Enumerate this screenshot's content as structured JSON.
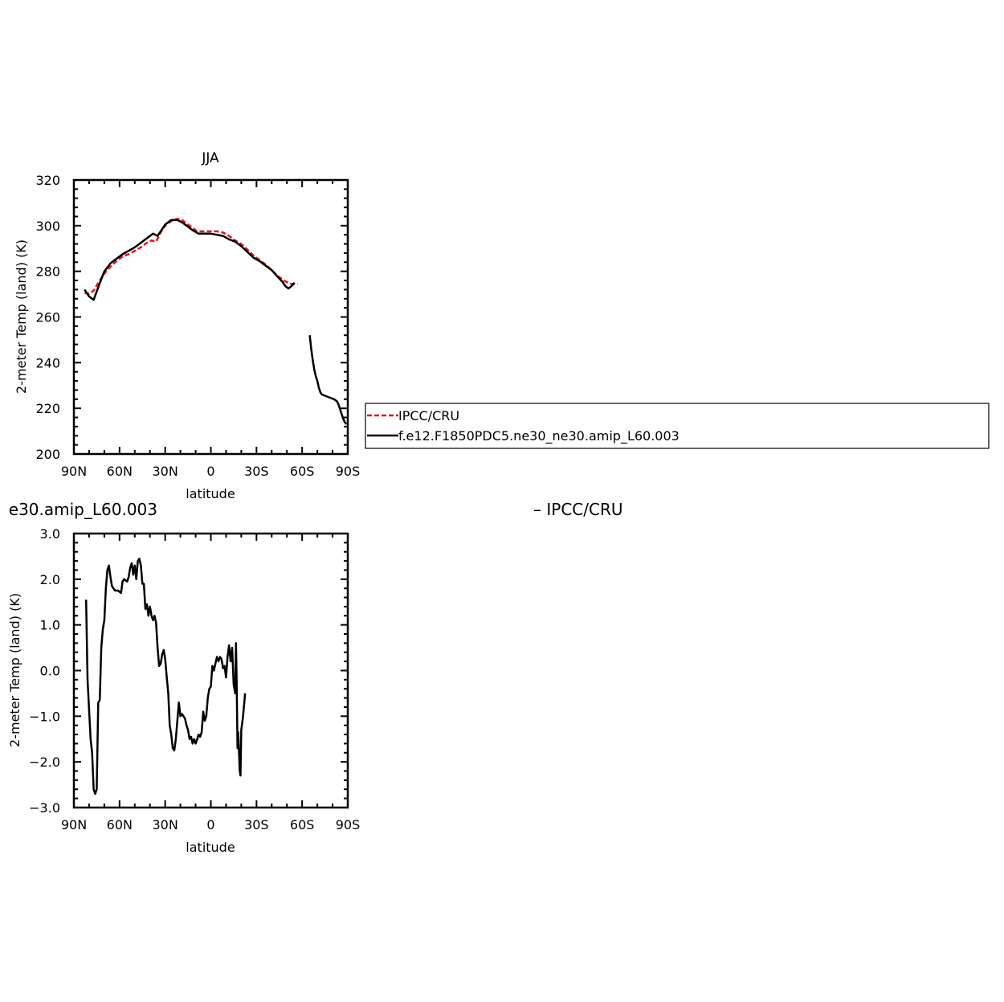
{
  "chart_data": [
    {
      "type": "line",
      "title": "JJA",
      "xlabel": "latitude",
      "ylabel": "2-meter Temp (land) (K)",
      "xlim": [
        90,
        -90
      ],
      "ylim": [
        200,
        320
      ],
      "x_ticks": [
        {
          "value": 90,
          "label": "90N"
        },
        {
          "value": 60,
          "label": "60N"
        },
        {
          "value": 30,
          "label": "30N"
        },
        {
          "value": 0,
          "label": "0"
        },
        {
          "value": -30,
          "label": "30S"
        },
        {
          "value": -60,
          "label": "60S"
        },
        {
          "value": -90,
          "label": "90S"
        }
      ],
      "y_ticks": [
        {
          "value": 320,
          "label": "320"
        },
        {
          "value": 300,
          "label": "300"
        },
        {
          "value": 280,
          "label": "280"
        },
        {
          "value": 260,
          "label": "260"
        },
        {
          "value": 240,
          "label": "240"
        },
        {
          "value": 220,
          "label": "220"
        },
        {
          "value": 200,
          "label": "200"
        }
      ],
      "legend_position": "outside-right",
      "series": [
        {
          "name": "IPCC/CRU",
          "color": "#e8141b",
          "dash": "dashed",
          "points": [
            [
              83,
              270.5
            ],
            [
              80,
              270.2
            ],
            [
              77,
              271.5
            ],
            [
              74,
              275
            ],
            [
              70,
              279
            ],
            [
              66,
              282
            ],
            [
              62,
              284.5
            ],
            [
              58,
              286.5
            ],
            [
              54,
              287.5
            ],
            [
              50,
              289
            ],
            [
              46,
              290.5
            ],
            [
              42,
              292.5
            ],
            [
              39,
              293.5
            ],
            [
              36,
              293
            ],
            [
              33,
              297
            ],
            [
              30,
              300
            ],
            [
              26,
              302
            ],
            [
              22,
              303
            ],
            [
              19,
              302.5
            ],
            [
              16,
              301
            ],
            [
              13,
              299.5
            ],
            [
              9,
              297.5
            ],
            [
              5,
              297.5
            ],
            [
              1,
              297.5
            ],
            [
              -4,
              297.5
            ],
            [
              -8,
              297
            ],
            [
              -12,
              295.5
            ],
            [
              -16,
              293.5
            ],
            [
              -20,
              292
            ],
            [
              -24,
              289.5
            ],
            [
              -28,
              287
            ],
            [
              -32,
              285
            ],
            [
              -36,
              283
            ],
            [
              -40,
              280.5
            ],
            [
              -44,
              278
            ],
            [
              -48,
              276
            ],
            [
              -52,
              274.5
            ],
            [
              -55,
              274.5
            ],
            [
              -57,
              274.5
            ]
          ]
        },
        {
          "name": "f.e12.F1850PDC5.ne30_ne30.amip_L60.003",
          "color": "#000000",
          "dash": "solid",
          "points": [
            [
              83,
              272
            ],
            [
              80,
              269
            ],
            [
              77,
              267.5
            ],
            [
              74,
              273
            ],
            [
              70,
              280
            ],
            [
              66,
              283.5
            ],
            [
              62,
              285.5
            ],
            [
              58,
              287.5
            ],
            [
              54,
              289
            ],
            [
              50,
              290.5
            ],
            [
              46,
              292.5
            ],
            [
              42,
              294.5
            ],
            [
              38,
              296.5
            ],
            [
              35,
              295.5
            ],
            [
              33,
              297.5
            ],
            [
              30,
              300.5
            ],
            [
              26,
              302.5
            ],
            [
              22,
              302.5
            ],
            [
              19,
              301.5
            ],
            [
              16,
              300
            ],
            [
              12,
              298
            ],
            [
              8,
              296.5
            ],
            [
              4,
              296.5
            ],
            [
              0,
              296.5
            ],
            [
              -4,
              296
            ],
            [
              -8,
              295.5
            ],
            [
              -12,
              294
            ],
            [
              -16,
              293
            ],
            [
              -20,
              291
            ],
            [
              -24,
              288.5
            ],
            [
              -28,
              286
            ],
            [
              -32,
              284.5
            ],
            [
              -36,
              282.5
            ],
            [
              -40,
              280.5
            ],
            [
              -44,
              277.5
            ],
            [
              -47,
              275.5
            ],
            [
              -49,
              273.5
            ],
            [
              -51,
              272.5
            ],
            [
              -53,
              273.5
            ],
            [
              -55,
              275
            ]
          ],
          "points_segment_2": [
            [
              -65,
              252
            ],
            [
              -66,
              246
            ],
            [
              -67,
              241
            ],
            [
              -68,
              237
            ],
            [
              -69,
              234
            ],
            [
              -70,
              232
            ],
            [
              -71,
              229
            ],
            [
              -72,
              227
            ],
            [
              -73,
              226
            ],
            [
              -75,
              225.5
            ],
            [
              -77,
              225
            ],
            [
              -79,
              224.5
            ],
            [
              -81,
              224
            ],
            [
              -83,
              223
            ],
            [
              -84,
              221.5
            ],
            [
              -85,
              219.5
            ],
            [
              -86,
              217.5
            ],
            [
              -87,
              215.5
            ],
            [
              -88,
              214
            ],
            [
              -89,
              213
            ]
          ]
        }
      ]
    },
    {
      "type": "line",
      "title": "e30.amip_L60.003",
      "title_right": "– IPCC/CRU",
      "xlabel": "latitude",
      "ylabel": "2-meter Temp (land) (K)",
      "xlim": [
        90,
        -90
      ],
      "ylim": [
        -3.0,
        3.0
      ],
      "x_ticks": [
        {
          "value": 90,
          "label": "90N"
        },
        {
          "value": 60,
          "label": "60N"
        },
        {
          "value": 30,
          "label": "30N"
        },
        {
          "value": 0,
          "label": "0"
        },
        {
          "value": -30,
          "label": "30S"
        },
        {
          "value": -60,
          "label": "60S"
        },
        {
          "value": -90,
          "label": "90S"
        }
      ],
      "y_ticks": [
        {
          "value": 3.0,
          "label": "3.0"
        },
        {
          "value": 2.0,
          "label": "2.0"
        },
        {
          "value": 1.0,
          "label": "1.0"
        },
        {
          "value": 0.0,
          "label": "0.0"
        },
        {
          "value": -1.0,
          "label": "−1.0"
        },
        {
          "value": -2.0,
          "label": "−2.0"
        },
        {
          "value": -3.0,
          "label": "−3.0"
        }
      ],
      "series": [
        {
          "name": "",
          "color": "#000000",
          "dash": "solid",
          "points": [
            [
              82,
              1.55
            ],
            [
              81,
              -0.2
            ],
            [
              79,
              -1.5
            ],
            [
              78,
              -1.8
            ],
            [
              77,
              -2.6
            ],
            [
              76,
              -2.7
            ],
            [
              75,
              -2.6
            ],
            [
              74,
              -0.7
            ],
            [
              73,
              -0.65
            ],
            [
              72,
              0.5
            ],
            [
              71,
              0.9
            ],
            [
              70,
              1.1
            ],
            [
              69,
              1.8
            ],
            [
              68,
              2.2
            ],
            [
              67,
              2.3
            ],
            [
              66,
              2.05
            ],
            [
              65,
              1.85
            ],
            [
              63,
              1.75
            ],
            [
              61,
              1.75
            ],
            [
              59,
              1.7
            ],
            [
              58,
              1.95
            ],
            [
              57,
              2.0
            ],
            [
              55,
              1.95
            ],
            [
              54,
              2.05
            ],
            [
              53,
              2.25
            ],
            [
              52,
              2.35
            ],
            [
              51,
              2.1
            ],
            [
              50,
              2.3
            ],
            [
              49,
              2.0
            ],
            [
              48,
              2.4
            ],
            [
              47,
              2.45
            ],
            [
              46,
              2.3
            ],
            [
              45,
              1.9
            ],
            [
              44,
              1.9
            ],
            [
              43,
              1.35
            ],
            [
              42,
              1.45
            ],
            [
              41,
              1.2
            ],
            [
              40,
              1.4
            ],
            [
              39,
              1.2
            ],
            [
              38,
              1.1
            ],
            [
              37,
              1.2
            ],
            [
              36,
              1.05
            ],
            [
              35,
              0.5
            ],
            [
              34,
              0.1
            ],
            [
              33,
              0.15
            ],
            [
              32,
              0.35
            ],
            [
              31,
              0.45
            ],
            [
              30,
              0.25
            ],
            [
              29,
              -0.15
            ],
            [
              28,
              -0.5
            ],
            [
              27,
              -1.2
            ],
            [
              26,
              -1.4
            ],
            [
              25,
              -1.7
            ],
            [
              24,
              -1.75
            ],
            [
              23,
              -1.5
            ],
            [
              22,
              -1.1
            ],
            [
              21,
              -0.7
            ],
            [
              20,
              -1.0
            ],
            [
              19,
              -0.95
            ],
            [
              18,
              -1.0
            ],
            [
              17,
              -1.05
            ],
            [
              16,
              -1.2
            ],
            [
              15,
              -1.3
            ],
            [
              14,
              -1.5
            ],
            [
              13,
              -1.45
            ],
            [
              12,
              -1.6
            ],
            [
              11,
              -1.5
            ],
            [
              10,
              -1.6
            ],
            [
              9,
              -1.5
            ],
            [
              8,
              -1.4
            ],
            [
              7,
              -1.45
            ],
            [
              6,
              -1.35
            ],
            [
              5,
              -0.9
            ],
            [
              4,
              -1.1
            ],
            [
              3,
              -1.0
            ],
            [
              2,
              -0.6
            ],
            [
              1,
              -0.4
            ],
            [
              0,
              -0.35
            ],
            [
              -1,
              0.1
            ],
            [
              -2,
              0.0
            ],
            [
              -3,
              0.15
            ],
            [
              -4,
              0.3
            ],
            [
              -5,
              0.2
            ],
            [
              -6,
              0.3
            ],
            [
              -7,
              0.25
            ],
            [
              -8,
              0.05
            ],
            [
              -9,
              0.1
            ],
            [
              -10,
              -0.15
            ],
            [
              -11,
              0.3
            ],
            [
              -12,
              0.55
            ],
            [
              -13,
              0.2
            ],
            [
              -14,
              0.5
            ],
            [
              -15,
              -0.3
            ],
            [
              -16,
              -0.5
            ],
            [
              -16.5,
              0.6
            ],
            [
              -17,
              -0.3
            ],
            [
              -17.5,
              -1.7
            ],
            [
              -18,
              -1.35
            ],
            [
              -19,
              -2.2
            ],
            [
              -19.5,
              -2.3
            ],
            [
              -20,
              -1.3
            ],
            [
              -21,
              -1.05
            ],
            [
              -22,
              -0.7
            ],
            [
              -22.5,
              -0.5
            ]
          ]
        }
      ]
    }
  ],
  "legend": {
    "items": [
      {
        "label": "IPCC/CRU",
        "color": "#e8141b",
        "dash": "dashed"
      },
      {
        "label": "f.e12.F1850PDC5.ne30_ne30.amip_L60.003",
        "color": "#000000",
        "dash": "solid"
      }
    ]
  }
}
